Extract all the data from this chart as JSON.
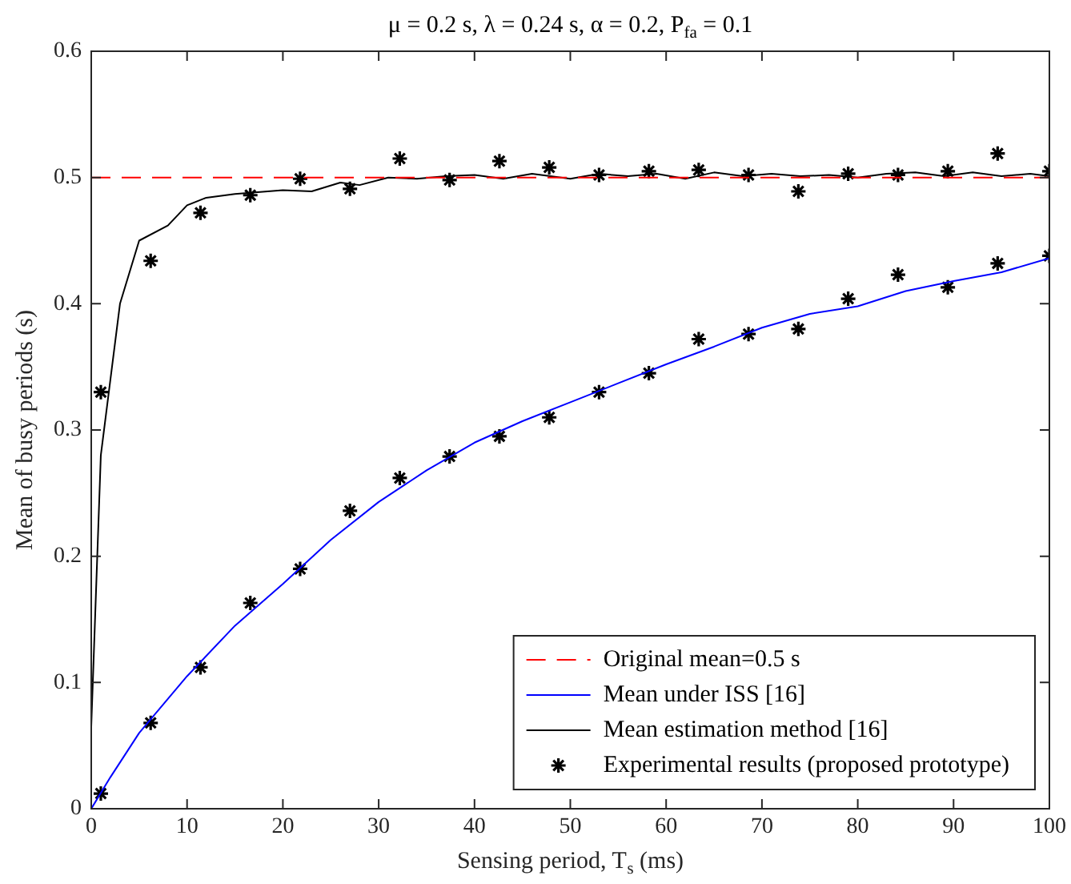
{
  "chart_data": {
    "type": "line",
    "title": "μ = 0.2 s, λ = 0.24 s, α = 0.2, P$_{fa}$ = 0.1",
    "xlabel": "Sensing period, T$_{s}$ (ms)",
    "ylabel": "Mean of busy periods (s)",
    "xlim": [
      0,
      100
    ],
    "ylim": [
      0,
      0.6
    ],
    "xticks": [
      0,
      10,
      20,
      30,
      40,
      50,
      60,
      70,
      80,
      90,
      100
    ],
    "yticks": [
      0,
      0.1,
      0.2,
      0.3,
      0.4,
      0.5,
      0.6
    ],
    "grid": false,
    "legend": "bottom right",
    "series": [
      {
        "name": "Original mean=0.5 s",
        "color": "#ff0000",
        "line_style": "dashed",
        "marker": "none",
        "x": [
          0,
          100
        ],
        "values": [
          0.5,
          0.5
        ]
      },
      {
        "name": "Mean under ISS [16]",
        "color": "#0000ff",
        "line_style": "solid",
        "marker": "none",
        "x": [
          0,
          2,
          5,
          10,
          15,
          20,
          25,
          30,
          35,
          40,
          45,
          50,
          55,
          60,
          65,
          70,
          75,
          80,
          85,
          90,
          95,
          100
        ],
        "values": [
          0,
          0.025,
          0.06,
          0.105,
          0.145,
          0.178,
          0.213,
          0.243,
          0.268,
          0.29,
          0.307,
          0.322,
          0.337,
          0.352,
          0.366,
          0.381,
          0.392,
          0.398,
          0.41,
          0.418,
          0.425,
          0.436
        ]
      },
      {
        "name": "Mean estimation method [16]",
        "color": "#000000",
        "line_style": "solid",
        "marker": "none",
        "x": [
          0,
          1,
          3,
          5,
          8,
          10,
          12,
          15,
          20,
          23,
          26,
          28,
          31,
          34,
          37,
          40,
          43,
          46,
          50,
          53,
          56,
          59,
          62,
          65,
          68,
          71,
          74,
          77,
          80,
          83,
          86,
          89,
          92,
          95,
          98,
          100
        ],
        "values": [
          0.065,
          0.28,
          0.4,
          0.45,
          0.462,
          0.478,
          0.484,
          0.487,
          0.49,
          0.489,
          0.496,
          0.494,
          0.5,
          0.499,
          0.501,
          0.502,
          0.499,
          0.503,
          0.499,
          0.503,
          0.501,
          0.503,
          0.499,
          0.504,
          0.501,
          0.503,
          0.501,
          0.502,
          0.5,
          0.503,
          0.504,
          0.501,
          0.504,
          0.501,
          0.503,
          0.501
        ]
      },
      {
        "name": "Experimental results (proposed prototype)",
        "type": "scatter",
        "color": "#000000",
        "marker": "cross",
        "x": [
          1,
          6.2,
          11.4,
          16.6,
          21.8,
          27,
          32.2,
          37.4,
          42.6,
          47.8,
          53,
          58.2,
          63.4,
          68.6,
          73.8,
          79,
          84.2,
          89.4,
          94.6,
          100,
          1,
          6.2,
          11.4,
          16.6,
          21.8,
          27,
          32.2,
          37.4,
          42.6,
          47.8,
          53,
          58.2,
          63.4,
          68.6,
          73.8,
          79,
          84.2,
          89.4,
          94.6,
          100
        ],
        "values": [
          0.33,
          0.434,
          0.472,
          0.486,
          0.499,
          0.491,
          0.515,
          0.498,
          0.513,
          0.508,
          0.502,
          0.505,
          0.506,
          0.502,
          0.489,
          0.503,
          0.502,
          0.505,
          0.519,
          0.505,
          0.012,
          0.068,
          0.112,
          0.163,
          0.19,
          0.236,
          0.262,
          0.279,
          0.295,
          0.31,
          0.33,
          0.345,
          0.372,
          0.376,
          0.38,
          0.404,
          0.423,
          0.413,
          0.432,
          0.438
        ]
      }
    ]
  }
}
